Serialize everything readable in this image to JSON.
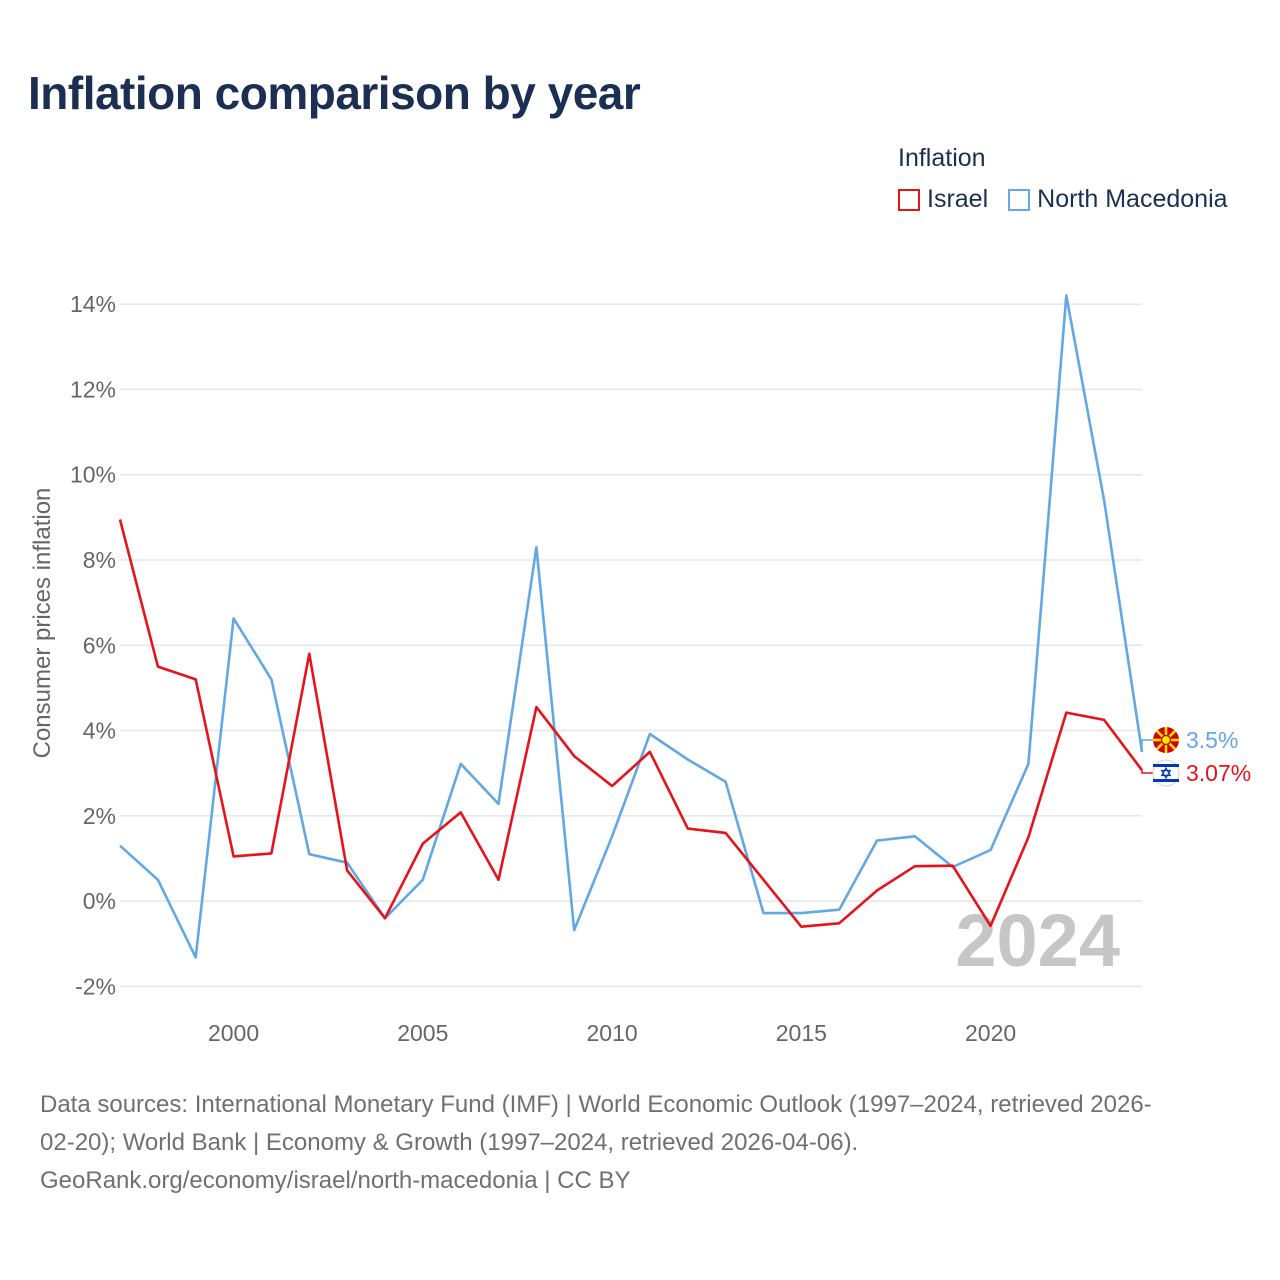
{
  "title": "Inflation comparison by year",
  "legend": {
    "title": "Inflation",
    "items": [
      {
        "label": "Israel",
        "color": "#e8121b"
      },
      {
        "label": "North Macedonia",
        "color": "#62a8e5"
      }
    ]
  },
  "colors": {
    "israel": "#e8121b",
    "north_macedonia": "#62a8e5",
    "grid": "#e6e6e6",
    "axis_text": "#666666",
    "year_watermark": "#c6c6c6"
  },
  "chart_data": {
    "type": "line",
    "title": "Inflation comparison by year",
    "xlabel": "",
    "ylabel": "Consumer prices inflation",
    "xlim": [
      1997,
      2024
    ],
    "ylim": [
      -2.6,
      14.8
    ],
    "y_ticks": [
      -2,
      0,
      2,
      4,
      6,
      8,
      10,
      12,
      14
    ],
    "y_tick_labels": [
      "-2%",
      "0%",
      "2%",
      "4%",
      "6%",
      "8%",
      "10%",
      "12%",
      "14%"
    ],
    "x_ticks": [
      2000,
      2005,
      2010,
      2015,
      2020
    ],
    "x_tick_labels": [
      "2000",
      "2005",
      "2010",
      "2015",
      "2020"
    ],
    "x": [
      1997,
      1998,
      1999,
      2000,
      2001,
      2002,
      2003,
      2004,
      2005,
      2006,
      2007,
      2008,
      2009,
      2010,
      2011,
      2012,
      2013,
      2014,
      2015,
      2016,
      2017,
      2018,
      2019,
      2020,
      2021,
      2022,
      2023,
      2024
    ],
    "series": [
      {
        "name": "Israel",
        "color": "#e8121b",
        "values": [
          8.95,
          5.5,
          5.2,
          1.05,
          1.12,
          5.8,
          0.72,
          -0.4,
          1.35,
          2.08,
          0.5,
          4.55,
          3.4,
          2.7,
          3.5,
          1.7,
          1.6,
          0.5,
          -0.6,
          -0.52,
          0.25,
          0.82,
          0.83,
          -0.58,
          1.5,
          4.42,
          4.25,
          3.07
        ],
        "end_label": "3.07%",
        "flag": "israel-flag-icon"
      },
      {
        "name": "North Macedonia",
        "color": "#62a8e5",
        "values": [
          1.3,
          0.5,
          -1.32,
          6.63,
          5.2,
          1.1,
          0.9,
          -0.4,
          0.5,
          3.22,
          2.28,
          8.3,
          -0.68,
          1.52,
          3.92,
          3.32,
          2.8,
          -0.28,
          -0.28,
          -0.2,
          1.42,
          1.52,
          0.8,
          1.2,
          3.22,
          14.2,
          9.4,
          3.5
        ],
        "end_label": "3.5%",
        "flag": "north-macedonia-flag-icon"
      }
    ],
    "year_watermark": "2024",
    "grid": true,
    "legend_position": "top-right"
  },
  "source": {
    "line1": "Data sources: International Monetary Fund (IMF) | World Economic Outlook (1997–2024, retrieved 2026-",
    "line2": "02-20); World Bank | Economy & Growth (1997–2024, retrieved 2026-04-06).",
    "line3": "GeoRank.org/economy/israel/north-macedonia | CC BY"
  }
}
